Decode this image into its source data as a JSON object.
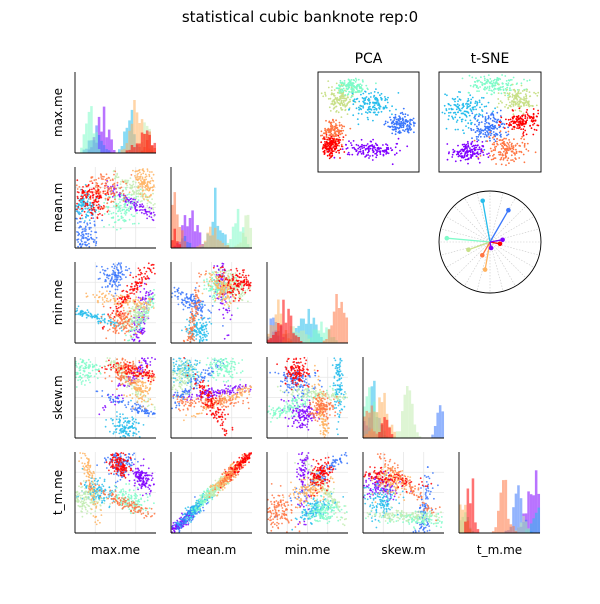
{
  "chart_data": {
    "type": "scatter",
    "title": "statistical cubic banknote rep:0",
    "variables": [
      "max.me",
      "mean.m",
      "min.me",
      "skew.m",
      "t_m.me"
    ],
    "panel_titles": {
      "pca": "PCA",
      "tsne": "t-SNE"
    },
    "layout": "lower-triangle scatter matrix with histogram diagonal, plus PCA, t-SNE and radial loading panels",
    "grid": true,
    "cluster_colors": [
      "#8000ff",
      "#3a76fb",
      "#27bdec",
      "#7ffbc9",
      "#c2ecb1",
      "#ffb360",
      "#ff7643",
      "#ff0000"
    ],
    "pca_clusters": [
      {
        "color": "#c8e088",
        "x": -0.55,
        "y": 0.45,
        "sx": 0.14,
        "sy": 0.12
      },
      {
        "color": "#7ffbc9",
        "x": -0.35,
        "y": 0.7,
        "sx": 0.15,
        "sy": 0.08
      },
      {
        "color": "#27bdec",
        "x": 0.1,
        "y": 0.35,
        "sx": 0.2,
        "sy": 0.12
      },
      {
        "color": "#3a76fb",
        "x": 0.65,
        "y": -0.05,
        "sx": 0.15,
        "sy": 0.12
      },
      {
        "color": "#8000ff",
        "x": 0.05,
        "y": -0.55,
        "sx": 0.32,
        "sy": 0.08
      },
      {
        "color": "#ff7643",
        "x": -0.7,
        "y": -0.2,
        "sx": 0.1,
        "sy": 0.12
      },
      {
        "color": "#ff0000",
        "x": -0.75,
        "y": -0.5,
        "sx": 0.1,
        "sy": 0.1
      }
    ],
    "tsne_clusters": [
      {
        "color": "#7ffbc9",
        "x": 0.1,
        "y": 0.75,
        "sx": 0.3,
        "sy": 0.1
      },
      {
        "color": "#c8e088",
        "x": 0.55,
        "y": 0.45,
        "sx": 0.15,
        "sy": 0.12
      },
      {
        "color": "#27bdec",
        "x": -0.5,
        "y": 0.25,
        "sx": 0.22,
        "sy": 0.18
      },
      {
        "color": "#3a76fb",
        "x": 0.0,
        "y": -0.1,
        "sx": 0.18,
        "sy": 0.14
      },
      {
        "color": "#ff0000",
        "x": 0.65,
        "y": 0.0,
        "sx": 0.18,
        "sy": 0.1
      },
      {
        "color": "#ff7643",
        "x": 0.3,
        "y": -0.55,
        "sx": 0.2,
        "sy": 0.14
      },
      {
        "color": "#8000ff",
        "x": -0.45,
        "y": -0.6,
        "sx": 0.15,
        "sy": 0.1
      }
    ],
    "radial_loadings": [
      {
        "color": "#3a76fb",
        "angle": 60,
        "r": 0.72
      },
      {
        "color": "#27bdec",
        "angle": 100,
        "r": 0.82
      },
      {
        "color": "#7ffbc9",
        "angle": 175,
        "r": 0.85
      },
      {
        "color": "#c8e088",
        "angle": 200,
        "r": 0.45
      },
      {
        "color": "#ffb360",
        "angle": 260,
        "r": 0.55
      },
      {
        "color": "#ff7643",
        "angle": 240,
        "r": 0.3
      },
      {
        "color": "#ff0000",
        "angle": 350,
        "r": 0.2
      },
      {
        "color": "#8000ff",
        "angle": 10,
        "r": 0.25
      },
      {
        "color": "#8000ff",
        "angle": 280,
        "r": 0.12
      }
    ]
  }
}
